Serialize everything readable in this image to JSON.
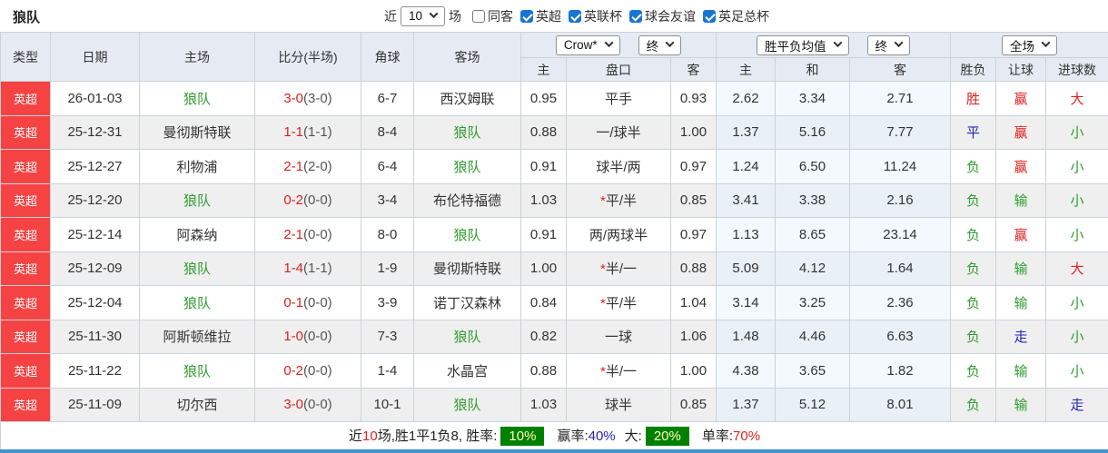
{
  "title": "狼队",
  "colors": {
    "red": "#e02020",
    "green": "#2f9d2f",
    "blue": "#2323bb",
    "badge": "#f54343",
    "headerbg": "#e6ebf3",
    "avgodd": "#f3f9fd",
    "avgeven": "#e9f0f6",
    "checkbox": "#1876d2",
    "greenbox": "#008000",
    "greenboxtext": "#ffffbb",
    "bottombar": "#4493c4"
  },
  "filters": {
    "recent_label": "近",
    "recent_value": "10",
    "matches_label": "场",
    "checkboxes": [
      {
        "label": "同客",
        "checked": false
      },
      {
        "label": "英超",
        "checked": true
      },
      {
        "label": "英联杯",
        "checked": true
      },
      {
        "label": "球会友谊",
        "checked": true
      },
      {
        "label": "英足总杯",
        "checked": true
      }
    ]
  },
  "table": {
    "selects": {
      "company": "Crow*",
      "company_state": "终",
      "avg": "胜平负均值",
      "avg_state": "终",
      "scope": "全场"
    },
    "headers": {
      "type": "类型",
      "date": "日期",
      "home": "主场",
      "score": "比分(半场)",
      "corner": "角球",
      "away": "客场",
      "odds_home": "主",
      "handicap": "盘口",
      "odds_away": "客",
      "avg_home": "主",
      "avg_draw": "和",
      "avg_away": "客",
      "result": "胜负",
      "let_result": "让球",
      "goal_result": "进球数"
    },
    "rows": [
      {
        "type": "英超",
        "date": "26-01-03",
        "home": "狼队",
        "home_hl": true,
        "score": "3-0",
        "half": "(3-0)",
        "corner": "6-7",
        "away": "西汉姆联",
        "away_hl": false,
        "odds_home": "0.95",
        "handicap": "平手",
        "odds_away": "0.93",
        "avg_home": "2.62",
        "avg_draw": "3.34",
        "avg_away": "2.71",
        "result": "胜",
        "result_color": "red",
        "let": "赢",
        "let_color": "red",
        "goal": "大",
        "goal_color": "red"
      },
      {
        "type": "英超",
        "date": "25-12-31",
        "home": "曼彻斯特联",
        "home_hl": false,
        "score": "1-1",
        "half": "(1-1)",
        "corner": "8-4",
        "away": "狼队",
        "away_hl": true,
        "odds_home": "0.88",
        "handicap": "一/球半",
        "odds_away": "1.00",
        "avg_home": "1.37",
        "avg_draw": "5.16",
        "avg_away": "7.77",
        "result": "平",
        "result_color": "blue",
        "let": "赢",
        "let_color": "red",
        "goal": "小",
        "goal_color": "green"
      },
      {
        "type": "英超",
        "date": "25-12-27",
        "home": "利物浦",
        "home_hl": false,
        "score": "2-1",
        "half": "(2-0)",
        "corner": "6-4",
        "away": "狼队",
        "away_hl": true,
        "odds_home": "0.91",
        "handicap": "球半/两",
        "odds_away": "0.97",
        "avg_home": "1.24",
        "avg_draw": "6.50",
        "avg_away": "11.24",
        "result": "负",
        "result_color": "green",
        "let": "赢",
        "let_color": "red",
        "goal": "小",
        "goal_color": "green"
      },
      {
        "type": "英超",
        "date": "25-12-20",
        "home": "狼队",
        "home_hl": true,
        "score": "0-2",
        "half": "(0-0)",
        "corner": "3-4",
        "away": "布伦特福德",
        "away_hl": false,
        "odds_home": "1.03",
        "handicap": "*平/半",
        "odds_away": "0.85",
        "avg_home": "3.41",
        "avg_draw": "3.38",
        "avg_away": "2.16",
        "result": "负",
        "result_color": "green",
        "let": "输",
        "let_color": "green",
        "goal": "小",
        "goal_color": "green"
      },
      {
        "type": "英超",
        "date": "25-12-14",
        "home": "阿森纳",
        "home_hl": false,
        "score": "2-1",
        "half": "(0-0)",
        "corner": "8-0",
        "away": "狼队",
        "away_hl": true,
        "odds_home": "0.91",
        "handicap": "两/两球半",
        "odds_away": "0.97",
        "avg_home": "1.13",
        "avg_draw": "8.65",
        "avg_away": "23.14",
        "result": "负",
        "result_color": "green",
        "let": "赢",
        "let_color": "red",
        "goal": "小",
        "goal_color": "green"
      },
      {
        "type": "英超",
        "date": "25-12-09",
        "home": "狼队",
        "home_hl": true,
        "score": "1-4",
        "half": "(1-1)",
        "corner": "1-9",
        "away": "曼彻斯特联",
        "away_hl": false,
        "odds_home": "1.00",
        "handicap": "*半/一",
        "odds_away": "0.88",
        "avg_home": "5.09",
        "avg_draw": "4.12",
        "avg_away": "1.64",
        "result": "负",
        "result_color": "green",
        "let": "输",
        "let_color": "green",
        "goal": "大",
        "goal_color": "red"
      },
      {
        "type": "英超",
        "date": "25-12-04",
        "home": "狼队",
        "home_hl": true,
        "score": "0-1",
        "half": "(0-0)",
        "corner": "3-9",
        "away": "诺丁汉森林",
        "away_hl": false,
        "odds_home": "0.84",
        "handicap": "*平/半",
        "odds_away": "1.04",
        "avg_home": "3.14",
        "avg_draw": "3.25",
        "avg_away": "2.36",
        "result": "负",
        "result_color": "green",
        "let": "输",
        "let_color": "green",
        "goal": "小",
        "goal_color": "green"
      },
      {
        "type": "英超",
        "date": "25-11-30",
        "home": "阿斯顿维拉",
        "home_hl": false,
        "score": "1-0",
        "half": "(0-0)",
        "corner": "7-3",
        "away": "狼队",
        "away_hl": true,
        "odds_home": "0.82",
        "handicap": "一球",
        "odds_away": "1.06",
        "avg_home": "1.48",
        "avg_draw": "4.46",
        "avg_away": "6.63",
        "result": "负",
        "result_color": "green",
        "let": "走",
        "let_color": "blue",
        "goal": "小",
        "goal_color": "green"
      },
      {
        "type": "英超",
        "date": "25-11-22",
        "home": "狼队",
        "home_hl": true,
        "score": "0-2",
        "half": "(0-0)",
        "corner": "1-4",
        "away": "水晶宫",
        "away_hl": false,
        "odds_home": "0.88",
        "handicap": "*半/一",
        "odds_away": "1.00",
        "avg_home": "4.38",
        "avg_draw": "3.65",
        "avg_away": "1.82",
        "result": "负",
        "result_color": "green",
        "let": "输",
        "let_color": "green",
        "goal": "小",
        "goal_color": "green"
      },
      {
        "type": "英超",
        "date": "25-11-09",
        "home": "切尔西",
        "home_hl": false,
        "score": "3-0",
        "half": "(0-0)",
        "corner": "10-1",
        "away": "狼队",
        "away_hl": true,
        "odds_home": "1.03",
        "handicap": "球半",
        "odds_away": "0.85",
        "avg_home": "1.37",
        "avg_draw": "5.12",
        "avg_away": "8.01",
        "result": "负",
        "result_color": "green",
        "let": "输",
        "let_color": "green",
        "goal": "走",
        "goal_color": "blue"
      }
    ]
  },
  "summary": {
    "t1": "近",
    "count": "10",
    "t2": "场,胜1平1负8, 胜率:",
    "win_rate": "10%",
    "t3": "赢率:",
    "profit_rate": "40%",
    "t4": "大:",
    "big_rate": "20%",
    "t5": "单率:",
    "odd_rate": "70%"
  }
}
